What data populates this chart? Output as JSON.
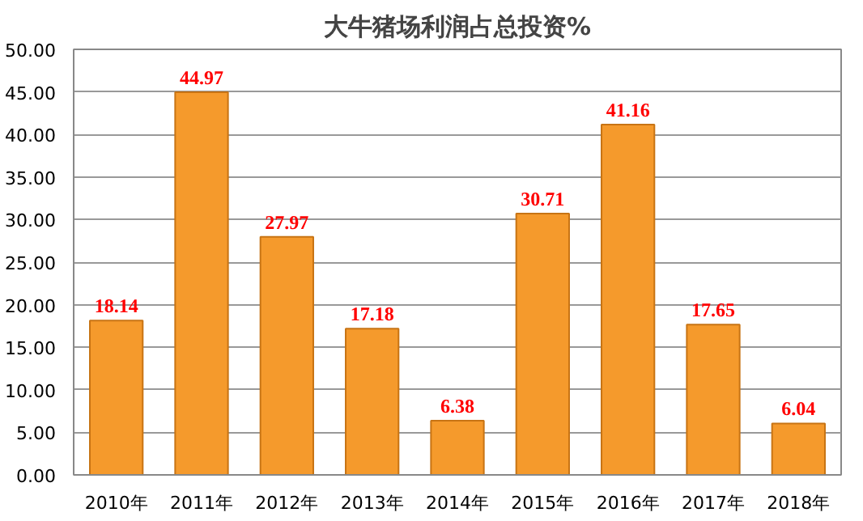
{
  "chart_data": {
    "type": "bar",
    "title": "大牛猪场利润占总投资%",
    "categories": [
      "2010年",
      "2011年",
      "2012年",
      "2013年",
      "2014年",
      "2015年",
      "2016年",
      "2017年",
      "2018年"
    ],
    "values": [
      18.14,
      44.97,
      27.97,
      17.18,
      6.38,
      30.71,
      41.16,
      17.65,
      6.04
    ],
    "color": "#f59a2c",
    "data_labels": true,
    "grid": "y",
    "ylim": [
      0,
      50
    ],
    "yticks": [
      {
        "value": 0,
        "label": "0.00"
      },
      {
        "value": 5,
        "label": "5.00"
      },
      {
        "value": 10,
        "label": "10.00"
      },
      {
        "value": 15,
        "label": "15.00"
      },
      {
        "value": 20,
        "label": "20.00"
      },
      {
        "value": 25,
        "label": "25.00"
      },
      {
        "value": 30,
        "label": "30.00"
      },
      {
        "value": 35,
        "label": "35.00"
      },
      {
        "value": 40,
        "label": "40.00"
      },
      {
        "value": 45,
        "label": "45.00"
      },
      {
        "value": 50,
        "label": "50.00"
      }
    ]
  }
}
